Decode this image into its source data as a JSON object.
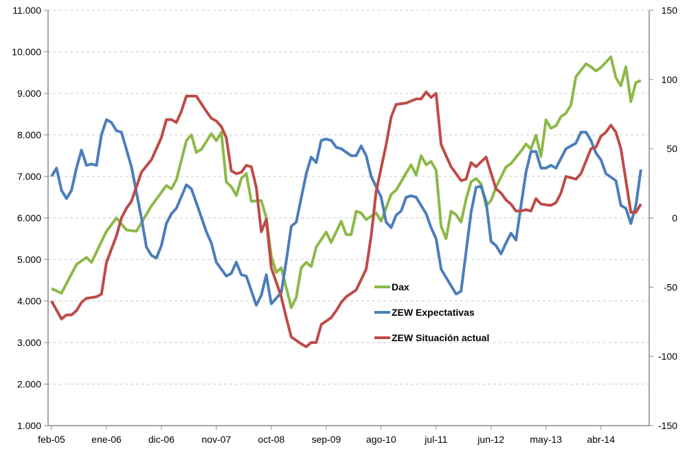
{
  "chart_data": {
    "type": "line",
    "title": "",
    "left_axis": {
      "ylim": [
        1000,
        11000
      ],
      "ticks": [
        "1.000",
        "2.000",
        "3.000",
        "4.000",
        "5.000",
        "6.000",
        "7.000",
        "8.000",
        "9.000",
        "10.000",
        "11.000"
      ]
    },
    "right_axis": {
      "ylim": [
        -150,
        150
      ],
      "ticks": [
        "-150",
        "-100",
        "-50",
        "0",
        "50",
        "100",
        "150"
      ]
    },
    "x_tick_labels": [
      "feb-05",
      "ene-06",
      "dic-06",
      "nov-07",
      "oct-08",
      "sep-09",
      "ago-10",
      "jul-11",
      "jun-12",
      "may-13",
      "abr-14"
    ],
    "grid": "horizontal dashed",
    "legend_position": "center-right",
    "series": [
      {
        "name": "Dax",
        "axis": "left",
        "color": "#8DB848",
        "points": [
          [
            "2005-02",
            4300
          ],
          [
            "2005-04",
            4190
          ],
          [
            "2005-07",
            4880
          ],
          [
            "2005-09",
            5050
          ],
          [
            "2005-10",
            4930
          ],
          [
            "2006-01",
            5680
          ],
          [
            "2006-03",
            6000
          ],
          [
            "2006-05",
            5710
          ],
          [
            "2006-07",
            5680
          ],
          [
            "2006-10",
            6290
          ],
          [
            "2007-01",
            6780
          ],
          [
            "2007-02",
            6700
          ],
          [
            "2007-03",
            6920
          ],
          [
            "2007-05",
            7860
          ],
          [
            "2007-06",
            8000
          ],
          [
            "2007-07",
            7580
          ],
          [
            "2007-08",
            7650
          ],
          [
            "2007-10",
            8030
          ],
          [
            "2007-11",
            7860
          ],
          [
            "2007-12",
            8060
          ],
          [
            "2008-01",
            6870
          ],
          [
            "2008-02",
            6750
          ],
          [
            "2008-03",
            6540
          ],
          [
            "2008-04",
            6950
          ],
          [
            "2008-05",
            7070
          ],
          [
            "2008-06",
            6400
          ],
          [
            "2008-08",
            6420
          ],
          [
            "2008-09",
            6010
          ],
          [
            "2008-10",
            5080
          ],
          [
            "2008-11",
            4690
          ],
          [
            "2008-12",
            4800
          ],
          [
            "2009-02",
            3840
          ],
          [
            "2009-03",
            4090
          ],
          [
            "2009-04",
            4800
          ],
          [
            "2009-05",
            4930
          ],
          [
            "2009-06",
            4830
          ],
          [
            "2009-07",
            5300
          ],
          [
            "2009-09",
            5660
          ],
          [
            "2009-10",
            5410
          ],
          [
            "2009-12",
            5920
          ],
          [
            "2010-01",
            5600
          ],
          [
            "2010-02",
            5600
          ],
          [
            "2010-03",
            6160
          ],
          [
            "2010-04",
            6120
          ],
          [
            "2010-05",
            5960
          ],
          [
            "2010-07",
            6120
          ],
          [
            "2010-08",
            5920
          ],
          [
            "2010-10",
            6570
          ],
          [
            "2010-11",
            6670
          ],
          [
            "2011-02",
            7280
          ],
          [
            "2011-03",
            7030
          ],
          [
            "2011-04",
            7500
          ],
          [
            "2011-05",
            7280
          ],
          [
            "2011-06",
            7360
          ],
          [
            "2011-07",
            7150
          ],
          [
            "2011-08",
            5800
          ],
          [
            "2011-09",
            5500
          ],
          [
            "2011-10",
            6160
          ],
          [
            "2011-11",
            6080
          ],
          [
            "2011-12",
            5900
          ],
          [
            "2012-01",
            6450
          ],
          [
            "2012-02",
            6870
          ],
          [
            "2012-03",
            6950
          ],
          [
            "2012-04",
            6820
          ],
          [
            "2012-05",
            6290
          ],
          [
            "2012-06",
            6420
          ],
          [
            "2012-07",
            6740
          ],
          [
            "2012-09",
            7230
          ],
          [
            "2012-10",
            7310
          ],
          [
            "2012-12",
            7610
          ],
          [
            "2013-01",
            7780
          ],
          [
            "2013-02",
            7660
          ],
          [
            "2013-03",
            7990
          ],
          [
            "2013-04",
            7480
          ],
          [
            "2013-05",
            8360
          ],
          [
            "2013-06",
            8160
          ],
          [
            "2013-07",
            8220
          ],
          [
            "2013-08",
            8440
          ],
          [
            "2013-09",
            8520
          ],
          [
            "2013-10",
            8720
          ],
          [
            "2013-11",
            9400
          ],
          [
            "2014-01",
            9710
          ],
          [
            "2014-02",
            9640
          ],
          [
            "2014-03",
            9540
          ],
          [
            "2014-04",
            9620
          ],
          [
            "2014-06",
            9880
          ],
          [
            "2014-07",
            9380
          ],
          [
            "2014-08",
            9180
          ],
          [
            "2014-09",
            9640
          ],
          [
            "2014-10",
            8800
          ],
          [
            "2014-11",
            9260
          ],
          [
            "2014-12",
            9310
          ]
        ]
      },
      {
        "name": "ZEW Expectativas",
        "axis": "right",
        "color": "#4A7EBB",
        "points": [
          [
            "2005-02",
            30
          ],
          [
            "2005-03",
            36
          ],
          [
            "2005-04",
            20
          ],
          [
            "2005-05",
            14
          ],
          [
            "2005-06",
            20
          ],
          [
            "2005-07",
            36
          ],
          [
            "2005-08",
            49
          ],
          [
            "2005-09",
            38
          ],
          [
            "2005-10",
            39
          ],
          [
            "2005-11",
            38
          ],
          [
            "2005-12",
            60
          ],
          [
            "2006-01",
            71
          ],
          [
            "2006-02",
            69
          ],
          [
            "2006-03",
            63
          ],
          [
            "2006-04",
            62
          ],
          [
            "2006-06",
            37
          ],
          [
            "2006-08",
            0
          ],
          [
            "2006-09",
            -21
          ],
          [
            "2006-10",
            -27
          ],
          [
            "2006-11",
            -29
          ],
          [
            "2006-12",
            -20
          ],
          [
            "2007-01",
            -4
          ],
          [
            "2007-02",
            3
          ],
          [
            "2007-03",
            7
          ],
          [
            "2007-05",
            24
          ],
          [
            "2007-06",
            21
          ],
          [
            "2007-07",
            11
          ],
          [
            "2007-09",
            -10
          ],
          [
            "2007-10",
            -18
          ],
          [
            "2007-11",
            -32
          ],
          [
            "2008-01",
            -42
          ],
          [
            "2008-02",
            -40
          ],
          [
            "2008-03",
            -32
          ],
          [
            "2008-04",
            -41
          ],
          [
            "2008-05",
            -42
          ],
          [
            "2008-07",
            -63
          ],
          [
            "2008-08",
            -56
          ],
          [
            "2008-09",
            -41
          ],
          [
            "2008-10",
            -62
          ],
          [
            "2008-12",
            -54
          ],
          [
            "2009-01",
            -31
          ],
          [
            "2009-02",
            -6
          ],
          [
            "2009-03",
            -3
          ],
          [
            "2009-05",
            32
          ],
          [
            "2009-06",
            44
          ],
          [
            "2009-07",
            40
          ],
          [
            "2009-08",
            56
          ],
          [
            "2009-09",
            57
          ],
          [
            "2009-10",
            56
          ],
          [
            "2009-11",
            51
          ],
          [
            "2009-12",
            50
          ],
          [
            "2010-02",
            45
          ],
          [
            "2010-03",
            45
          ],
          [
            "2010-04",
            52
          ],
          [
            "2010-05",
            45
          ],
          [
            "2010-06",
            30
          ],
          [
            "2010-08",
            15
          ],
          [
            "2010-09",
            -3
          ],
          [
            "2010-10",
            -7
          ],
          [
            "2010-11",
            2
          ],
          [
            "2010-12",
            5
          ],
          [
            "2011-01",
            15
          ],
          [
            "2011-02",
            16
          ],
          [
            "2011-03",
            15
          ],
          [
            "2011-05",
            3
          ],
          [
            "2011-06",
            -7
          ],
          [
            "2011-07",
            -15
          ],
          [
            "2011-08",
            -37
          ],
          [
            "2011-10",
            -49
          ],
          [
            "2011-11",
            -55
          ],
          [
            "2011-12",
            -53
          ],
          [
            "2012-02",
            4
          ],
          [
            "2012-03",
            22
          ],
          [
            "2012-04",
            23
          ],
          [
            "2012-05",
            12
          ],
          [
            "2012-06",
            -17
          ],
          [
            "2012-07",
            -20
          ],
          [
            "2012-08",
            -26
          ],
          [
            "2012-09",
            -18
          ],
          [
            "2012-10",
            -11
          ],
          [
            "2012-11",
            -16
          ],
          [
            "2012-12",
            9
          ],
          [
            "2013-01",
            33
          ],
          [
            "2013-02",
            48
          ],
          [
            "2013-03",
            48
          ],
          [
            "2013-04",
            36
          ],
          [
            "2013-05",
            36
          ],
          [
            "2013-06",
            38
          ],
          [
            "2013-07",
            36
          ],
          [
            "2013-09",
            50
          ],
          [
            "2013-10",
            52
          ],
          [
            "2013-11",
            54
          ],
          [
            "2013-12",
            62
          ],
          [
            "2014-01",
            62
          ],
          [
            "2014-02",
            56
          ],
          [
            "2014-03",
            47
          ],
          [
            "2014-04",
            42
          ],
          [
            "2014-05",
            32
          ],
          [
            "2014-07",
            27
          ],
          [
            "2014-08",
            9
          ],
          [
            "2014-09",
            7
          ],
          [
            "2014-10",
            -4
          ],
          [
            "2014-11",
            9
          ],
          [
            "2014-12",
            35
          ]
        ]
      },
      {
        "name": "ZEW Situación actual",
        "axis": "right",
        "color": "#BE4B48",
        "points": [
          [
            "2005-02",
            -60
          ],
          [
            "2005-04",
            -73
          ],
          [
            "2005-05",
            -70
          ],
          [
            "2005-06",
            -70
          ],
          [
            "2005-07",
            -67
          ],
          [
            "2005-08",
            -61
          ],
          [
            "2005-09",
            -58
          ],
          [
            "2005-11",
            -57
          ],
          [
            "2005-12",
            -55
          ],
          [
            "2006-01",
            -32
          ],
          [
            "2006-03",
            -13
          ],
          [
            "2006-04",
            0
          ],
          [
            "2006-05",
            7
          ],
          [
            "2006-06",
            12
          ],
          [
            "2006-08",
            33
          ],
          [
            "2006-10",
            42
          ],
          [
            "2006-12",
            58
          ],
          [
            "2007-01",
            71
          ],
          [
            "2007-02",
            71
          ],
          [
            "2007-03",
            69
          ],
          [
            "2007-04",
            77
          ],
          [
            "2007-05",
            88
          ],
          [
            "2007-07",
            88
          ],
          [
            "2007-09",
            77
          ],
          [
            "2007-10",
            72
          ],
          [
            "2007-11",
            70
          ],
          [
            "2007-12",
            66
          ],
          [
            "2008-01",
            58
          ],
          [
            "2008-02",
            34
          ],
          [
            "2008-03",
            32
          ],
          [
            "2008-04",
            33
          ],
          [
            "2008-05",
            38
          ],
          [
            "2008-06",
            37
          ],
          [
            "2008-07",
            22
          ],
          [
            "2008-08",
            -10
          ],
          [
            "2008-09",
            -1
          ],
          [
            "2008-10",
            -36
          ],
          [
            "2008-12",
            -57
          ],
          [
            "2009-01",
            -72
          ],
          [
            "2009-02",
            -86
          ],
          [
            "2009-04",
            -91
          ],
          [
            "2009-05",
            -93
          ],
          [
            "2009-06",
            -90
          ],
          [
            "2009-07",
            -90
          ],
          [
            "2009-08",
            -77
          ],
          [
            "2009-10",
            -72
          ],
          [
            "2009-11",
            -67
          ],
          [
            "2009-12",
            -61
          ],
          [
            "2010-01",
            -57
          ],
          [
            "2010-03",
            -52
          ],
          [
            "2010-05",
            -37
          ],
          [
            "2010-06",
            -13
          ],
          [
            "2010-07",
            19
          ],
          [
            "2010-09",
            53
          ],
          [
            "2010-10",
            73
          ],
          [
            "2010-11",
            82
          ],
          [
            "2011-01",
            83
          ],
          [
            "2011-03",
            86
          ],
          [
            "2011-04",
            86
          ],
          [
            "2011-05",
            91
          ],
          [
            "2011-06",
            87
          ],
          [
            "2011-07",
            90
          ],
          [
            "2011-08",
            53
          ],
          [
            "2011-09",
            45
          ],
          [
            "2011-10",
            37
          ],
          [
            "2011-11",
            32
          ],
          [
            "2011-12",
            27
          ],
          [
            "2012-01",
            28
          ],
          [
            "2012-02",
            40
          ],
          [
            "2012-03",
            37
          ],
          [
            "2012-05",
            44
          ],
          [
            "2012-07",
            21
          ],
          [
            "2012-08",
            18
          ],
          [
            "2012-09",
            13
          ],
          [
            "2012-10",
            10
          ],
          [
            "2012-11",
            5
          ],
          [
            "2012-12",
            5
          ],
          [
            "2013-01",
            6
          ],
          [
            "2013-02",
            5
          ],
          [
            "2013-03",
            14
          ],
          [
            "2013-04",
            10
          ],
          [
            "2013-06",
            9
          ],
          [
            "2013-07",
            11
          ],
          [
            "2013-08",
            18
          ],
          [
            "2013-09",
            30
          ],
          [
            "2013-11",
            28
          ],
          [
            "2013-12",
            32
          ],
          [
            "2014-02",
            50
          ],
          [
            "2014-03",
            51
          ],
          [
            "2014-04",
            59
          ],
          [
            "2014-05",
            62
          ],
          [
            "2014-06",
            67
          ],
          [
            "2014-07",
            62
          ],
          [
            "2014-08",
            50
          ],
          [
            "2014-10",
            4
          ],
          [
            "2014-11",
            4
          ],
          [
            "2014-12",
            10
          ]
        ]
      }
    ]
  }
}
